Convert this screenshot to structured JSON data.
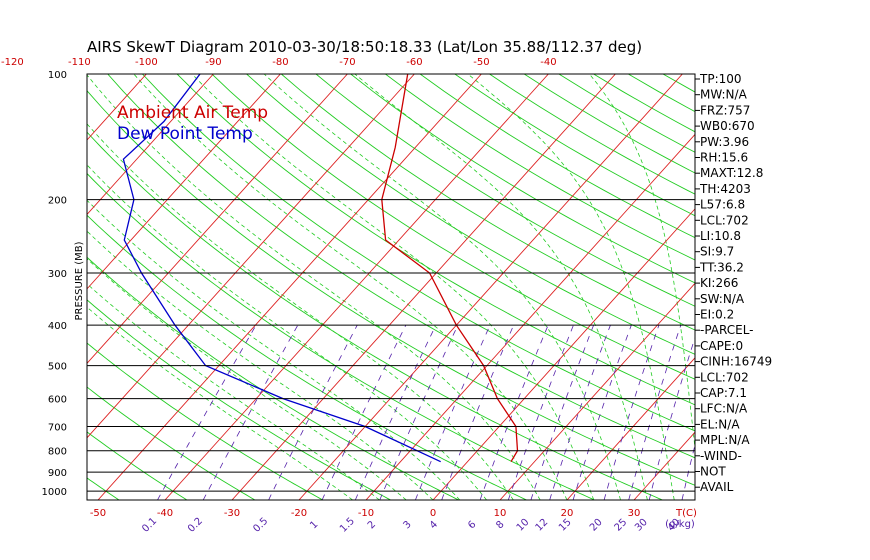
{
  "title": "AIRS SkewT Diagram 2010-03-30/18:50:18.33 (Lat/Lon 35.88/112.37 deg)",
  "colors": {
    "frame": "#000000",
    "isotherm": "#dd2222",
    "dry_adiabat": "#22cc22",
    "moist_adiabat": "#22cc22",
    "mixing_ratio": "#5522aa",
    "ambient": "#cc0000",
    "dewpoint": "#0000cc",
    "tick_text": "#cc0000",
    "mixing_text": "#5522aa"
  },
  "chart_data": {
    "type": "line",
    "title": "AIRS SkewT Diagram 2010-03-30/18:50:18.33 (Lat/Lon 35.88/112.37 deg)",
    "ylabel": "PRESSURE (MB)",
    "xlabel": "T(C)",
    "mixing_ratio_label": "(g/kg)",
    "y_scale": "log",
    "ylim": [
      1050,
      100
    ],
    "xlim_bottom": [
      -52,
      38
    ],
    "pressure_ticks": [
      100,
      200,
      300,
      400,
      500,
      600,
      700,
      800,
      900,
      1000
    ],
    "temperature_ticks_bottom": [
      -50,
      -40,
      -30,
      -20,
      -10,
      0,
      10,
      20,
      30
    ],
    "temperature_ticks_top": [
      -120,
      -110,
      -100,
      -90,
      -80,
      -70,
      -60,
      -50,
      -40
    ],
    "mixing_ratio_ticks": [
      "0.1",
      "0.2",
      "0.5",
      "1",
      "1.5",
      "2",
      "3",
      "4",
      "6",
      "8",
      "10",
      "12",
      "15",
      "20",
      "25",
      "30",
      "40"
    ],
    "legend": [
      "Ambient Air Temp",
      "Dew Point Temp"
    ],
    "series": [
      {
        "name": "Ambient Air Temp",
        "points": [
          {
            "p": 850,
            "t": 6.5
          },
          {
            "p": 800,
            "t": 6.0
          },
          {
            "p": 700,
            "t": 2.5
          },
          {
            "p": 600,
            "t": -4.0
          },
          {
            "p": 500,
            "t": -10.5
          },
          {
            "p": 400,
            "t": -20.0
          },
          {
            "p": 300,
            "t": -31.0
          },
          {
            "p": 250,
            "t": -42.0
          },
          {
            "p": 200,
            "t": -48.0
          },
          {
            "p": 150,
            "t": -53.0
          },
          {
            "p": 100,
            "t": -61.0
          }
        ]
      },
      {
        "name": "Dew Point Temp",
        "points": [
          {
            "p": 850,
            "t": -4.0
          },
          {
            "p": 700,
            "t": -20.0
          },
          {
            "p": 600,
            "t": -36.0
          },
          {
            "p": 500,
            "t": -52.0
          },
          {
            "p": 400,
            "t": -62.0
          },
          {
            "p": 300,
            "t": -74.0
          },
          {
            "p": 250,
            "t": -81.0
          },
          {
            "p": 200,
            "t": -85.0
          },
          {
            "p": 160,
            "t": -92.0
          },
          {
            "p": 130,
            "t": -91.0
          },
          {
            "p": 100,
            "t": -92.0
          }
        ]
      }
    ]
  },
  "indices": [
    "TP:100",
    "MW:N/A",
    "FRZ:757",
    "WB0:670",
    "PW:3.96",
    "RH:15.6",
    "MAXT:12.8",
    "TH:4203",
    "L57:6.8",
    "LCL:702",
    "LI:10.8",
    "SI:9.7",
    "TT:36.2",
    "KI:266",
    "SW:N/A",
    "EI:0.2",
    "-PARCEL-",
    "CAPE:0",
    "CINH:16749",
    "LCL:702",
    "CAP:7.1",
    "LFC:N/A",
    "EL:N/A",
    "MPL:N/A",
    "-WIND-",
    "NOT",
    "AVAIL"
  ]
}
